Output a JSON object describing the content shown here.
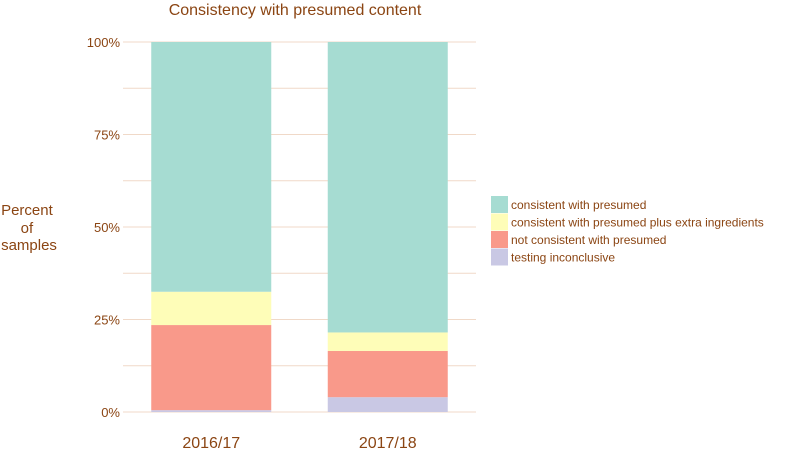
{
  "chart_data": {
    "type": "bar",
    "stacked": true,
    "title": "Consistency with presumed content",
    "xlabel": "",
    "ylabel": [
      "Percent",
      "of",
      "samples"
    ],
    "categories": [
      "2016/17",
      "2017/18"
    ],
    "ylim": [
      0,
      100
    ],
    "yticks": [
      "0%",
      "25%",
      "50%",
      "75%",
      "100%"
    ],
    "legend_position": "right",
    "series": [
      {
        "name": "testing inconclusive",
        "color": "#c9c8e4",
        "values": [
          0.5,
          4
        ]
      },
      {
        "name": "not consistent with presumed",
        "color": "#f9998a",
        "values": [
          23,
          12.5
        ]
      },
      {
        "name": "consistent with presumed plus extra ingredients",
        "color": "#fefdb8",
        "values": [
          9,
          5
        ]
      },
      {
        "name": "consistent with presumed",
        "color": "#a6dcd2",
        "values": [
          67.5,
          78.5
        ]
      }
    ],
    "legend_order": [
      "consistent with presumed",
      "consistent with presumed plus extra ingredients",
      "not consistent with presumed",
      "testing inconclusive"
    ]
  }
}
